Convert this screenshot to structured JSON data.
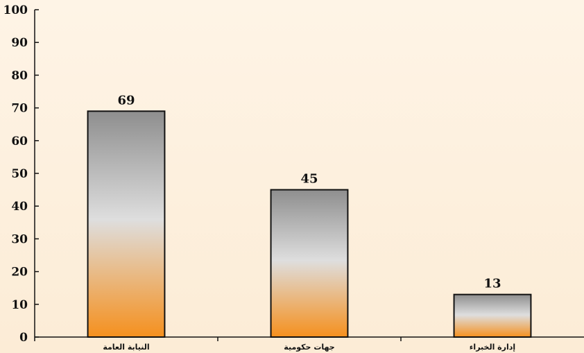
{
  "chart_data": {
    "type": "bar",
    "categories": [
      "النيابة العامة",
      "جهات حكومية",
      "إدارة الخبراء"
    ],
    "values": [
      69,
      45,
      13
    ],
    "data_labels": [
      "69",
      "45",
      "13"
    ],
    "title": "",
    "xlabel": "",
    "ylabel": "",
    "ylim": [
      0,
      100
    ],
    "yticks": [
      "0",
      "10",
      "20",
      "30",
      "40",
      "50",
      "60",
      "70",
      "80",
      "90",
      "100"
    ],
    "grid": false,
    "legend": "none",
    "colors": {
      "bar_top": "#8e8e8e",
      "bar_mid": "#dedede",
      "bar_bottom": "#f5901e",
      "bar_stroke": "#111111",
      "axis": "#111111"
    }
  }
}
